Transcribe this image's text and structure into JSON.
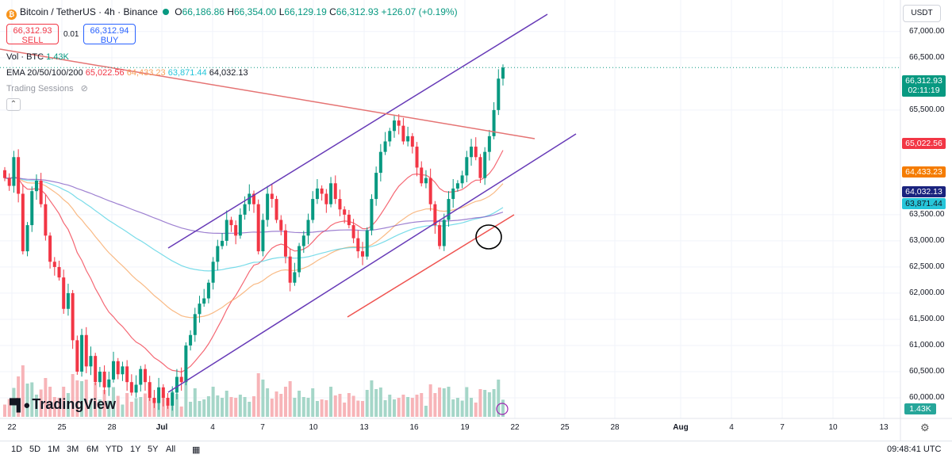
{
  "header": {
    "symbol": "Bitcoin / TetherUS · 4h · Binance",
    "o_label": "O",
    "o_value": "66,186.86",
    "h_label": "H",
    "h_value": "66,354.00",
    "l_label": "L",
    "l_value": "66,129.19",
    "c_label": "C",
    "c_value": "66,312.93",
    "change": "+126.07 (+0.19%)",
    "coin_glyph": "₿"
  },
  "trade": {
    "sell_price": "66,312.93",
    "sell_label": "SELL",
    "spread": "0.01",
    "buy_price": "66,312.94",
    "buy_label": "BUY"
  },
  "indicators": {
    "vol_label": "Vol · BTC",
    "vol_value": "1.43K",
    "ema_label": "EMA 20/50/100/200",
    "ema20": "65,022.56",
    "ema50": "64,433.23",
    "ema100": "63,871.44",
    "ema200": "64,032.13",
    "sessions_label": "Trading Sessions"
  },
  "currency": "USDT",
  "price_axis": {
    "ticks": [
      "67,000.00",
      "66,500.00",
      "65,500.00",
      "63,500.00",
      "63,000.00",
      "62,500.00",
      "62,000.00",
      "61,500.00",
      "61,000.00",
      "60,500.00",
      "60,000.00"
    ],
    "tags": {
      "last": "66,312.93",
      "countdown": "02:11:19",
      "ema20": "65,022.56",
      "ema50": "64,433.23",
      "ema200": "64,032.13",
      "ema100": "63,871.44",
      "volume": "1.43K"
    }
  },
  "time_axis": {
    "labels": [
      "22",
      "25",
      "28",
      "Jul",
      "4",
      "7",
      "10",
      "13",
      "16",
      "19",
      "22",
      "25",
      "28",
      "Aug",
      "4",
      "7",
      "10",
      "13"
    ]
  },
  "bottom": {
    "ranges": [
      "1D",
      "5D",
      "1M",
      "3M",
      "6M",
      "YTD",
      "1Y",
      "5Y",
      "All"
    ],
    "clock": "09:48:41 UTC"
  },
  "watermark": "TradingView",
  "colors": {
    "up": "#089981",
    "down": "#f23645",
    "ema20": "#f23645",
    "ema50": "#f7a35c",
    "ema100": "#4dd0e1",
    "ema200": "#7e57c2",
    "channel": "#673ab7"
  },
  "chart_data": {
    "type": "candlestick",
    "interval": "4h",
    "x_range": [
      "Jun 22",
      "Aug 13"
    ],
    "y_range": [
      59500,
      67300
    ],
    "closes": [
      64200,
      64050,
      64600,
      63900,
      62800,
      63300,
      63950,
      64150,
      63700,
      63100,
      62600,
      62500,
      62300,
      61700,
      62000,
      61100,
      60500,
      61200,
      60600,
      60800,
      60300,
      60500,
      60200,
      60350,
      60700,
      60450,
      60600,
      60300,
      60100,
      60250,
      60550,
      60300,
      60000,
      59900,
      60200,
      60000,
      59850,
      60100,
      60400,
      60300,
      61000,
      61200,
      61600,
      61800,
      61900,
      62200,
      62600,
      62900,
      63000,
      63400,
      63300,
      63100,
      63500,
      63700,
      63900,
      63700,
      62800,
      63400,
      63900,
      63800,
      63400,
      63200,
      62700,
      62200,
      62400,
      62900,
      63100,
      63400,
      63800,
      64000,
      63900,
      63700,
      64100,
      63800,
      63600,
      63500,
      63300,
      63050,
      62800,
      62700,
      63200,
      63800,
      64300,
      64700,
      64900,
      65100,
      65300,
      65200,
      64900,
      65000,
      64800,
      64400,
      64100,
      64200,
      63700,
      63300,
      62900,
      63400,
      63800,
      64000,
      64100,
      64250,
      64600,
      64800,
      64600,
      64200,
      64700,
      65000,
      65500,
      66100,
      66312
    ]
  }
}
